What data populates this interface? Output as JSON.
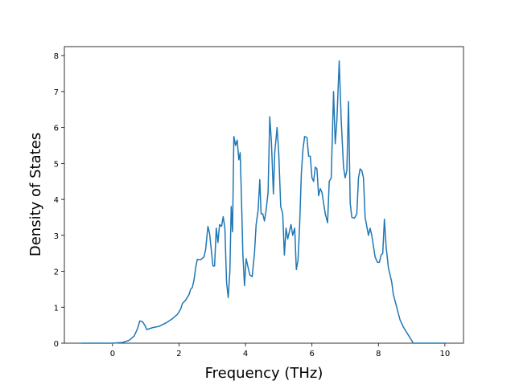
{
  "chart_data": {
    "type": "line",
    "x_label": "Frequency (THz)",
    "y_label": "Density of States",
    "x": [
      -0.95,
      0,
      0.3,
      0.5,
      0.65,
      0.75,
      0.82,
      0.9,
      0.97,
      1.03,
      1.2,
      1.4,
      1.6,
      1.8,
      1.95,
      2.05,
      2.1,
      2.2,
      2.3,
      2.35,
      2.4,
      2.45,
      2.5,
      2.55,
      2.65,
      2.75,
      2.8,
      2.87,
      2.92,
      2.97,
      3.02,
      3.07,
      3.12,
      3.17,
      3.22,
      3.28,
      3.33,
      3.38,
      3.43,
      3.48,
      3.53,
      3.57,
      3.61,
      3.65,
      3.7,
      3.75,
      3.8,
      3.84,
      3.88,
      3.92,
      3.97,
      4.02,
      4.08,
      4.13,
      4.2,
      4.27,
      4.32,
      4.38,
      4.43,
      4.47,
      4.52,
      4.57,
      4.62,
      4.68,
      4.73,
      4.78,
      4.84,
      4.88,
      4.95,
      5.0,
      5.06,
      5.12,
      5.17,
      5.22,
      5.27,
      5.32,
      5.37,
      5.42,
      5.48,
      5.53,
      5.58,
      5.63,
      5.68,
      5.73,
      5.78,
      5.85,
      5.9,
      5.95,
      6.0,
      6.05,
      6.1,
      6.15,
      6.2,
      6.25,
      6.3,
      6.35,
      6.4,
      6.47,
      6.52,
      6.58,
      6.65,
      6.7,
      6.75,
      6.82,
      6.88,
      6.95,
      7.0,
      7.05,
      7.1,
      7.15,
      7.2,
      7.28,
      7.35,
      7.4,
      7.45,
      7.5,
      7.55,
      7.6,
      7.7,
      7.75,
      7.8,
      7.85,
      7.9,
      7.97,
      8.03,
      8.08,
      8.13,
      8.18,
      8.23,
      8.3,
      8.35,
      8.4,
      8.45,
      8.55,
      8.65,
      8.75,
      8.85,
      8.95,
      9.05,
      9.2,
      10
    ],
    "series": [
      {
        "color": "#1f77b4",
        "values": [
          0,
          0,
          0.02,
          0.08,
          0.2,
          0.4,
          0.62,
          0.6,
          0.5,
          0.38,
          0.43,
          0.47,
          0.56,
          0.68,
          0.8,
          0.95,
          1.1,
          1.2,
          1.35,
          1.5,
          1.55,
          1.75,
          2.1,
          2.33,
          2.32,
          2.4,
          2.6,
          3.25,
          3.05,
          2.6,
          2.15,
          2.15,
          3.2,
          2.8,
          3.3,
          3.25,
          3.52,
          3.2,
          1.7,
          1.27,
          2.0,
          3.8,
          3.1,
          5.75,
          5.5,
          5.65,
          5.1,
          5.3,
          4.0,
          2.5,
          1.6,
          2.35,
          2.1,
          1.9,
          1.85,
          2.5,
          3.3,
          3.7,
          4.55,
          3.6,
          3.6,
          3.4,
          3.7,
          4.2,
          6.3,
          5.6,
          4.15,
          5.3,
          6.0,
          5.3,
          3.8,
          3.6,
          2.45,
          3.2,
          2.9,
          3.1,
          3.3,
          3.0,
          3.2,
          2.05,
          2.3,
          3.3,
          4.7,
          5.4,
          5.75,
          5.72,
          5.2,
          5.2,
          4.6,
          4.5,
          4.9,
          4.85,
          4.1,
          4.3,
          4.2,
          3.9,
          3.6,
          3.35,
          4.5,
          4.6,
          7.0,
          5.55,
          6.2,
          7.85,
          6.2,
          4.9,
          4.6,
          4.8,
          6.72,
          3.9,
          3.5,
          3.48,
          3.6,
          4.6,
          4.85,
          4.8,
          4.6,
          3.5,
          3.0,
          3.2,
          3.0,
          2.7,
          2.4,
          2.25,
          2.25,
          2.45,
          2.5,
          3.45,
          2.7,
          2.1,
          1.9,
          1.7,
          1.35,
          1.0,
          0.65,
          0.45,
          0.3,
          0.15,
          0,
          0,
          0
        ]
      }
    ],
    "xlim": [
      -1.45,
      10.56
    ],
    "ylim": [
      0,
      8.25
    ],
    "xticks": [
      0,
      2,
      4,
      6,
      8,
      10
    ],
    "yticks": [
      0,
      1,
      2,
      3,
      4,
      5,
      6,
      7,
      8
    ]
  }
}
